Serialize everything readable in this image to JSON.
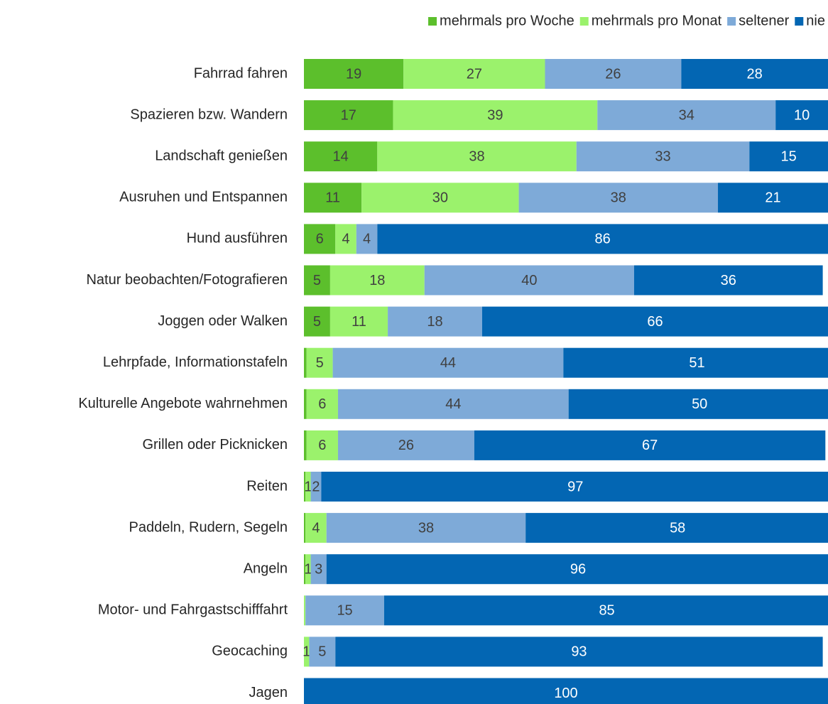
{
  "chart_data": {
    "type": "stacked-bar-horizontal",
    "categories": [
      "Fahrrad fahren",
      "Spazieren bzw. Wandern",
      "Landschaft genießen",
      "Ausruhen und Entspannen",
      "Hund ausführen",
      "Natur beobachten/Fotografieren",
      "Joggen oder Walken",
      "Lehrpfade, Informationstafeln",
      "Kulturelle Angebote wahrnehmen",
      "Grillen oder Picknicken",
      "Reiten",
      "Paddeln, Rudern, Segeln",
      "Angeln",
      "Motor- und Fahrgastschifffahrt",
      "Geocaching",
      "Jagen"
    ],
    "xlim": [
      0,
      100
    ],
    "legend": "top-right",
    "series": [
      {
        "name": "mehrmals pro Woche",
        "color": "#5cbf2c",
        "values": [
          19,
          17,
          14,
          11,
          6,
          5,
          5,
          0.5,
          0.5,
          0.5,
          0.3,
          0.3,
          0.3,
          0,
          0,
          0
        ],
        "value_labels": [
          "19",
          "17",
          "14",
          "11",
          "6",
          "5",
          "5",
          null,
          null,
          null,
          null,
          null,
          null,
          null,
          null,
          null
        ]
      },
      {
        "name": "mehrmals pro Monat",
        "color": "#9bf26c",
        "values": [
          27,
          39,
          38,
          30,
          4,
          18,
          11,
          5,
          6,
          6,
          1,
          4,
          1,
          0.3,
          1,
          0
        ],
        "value_labels": [
          "27",
          "39",
          "38",
          "30",
          "4",
          "18",
          "11",
          "5",
          "6",
          "6",
          "1",
          "4",
          "1",
          null,
          "1",
          null
        ]
      },
      {
        "name": "seltener",
        "color": "#7eaad8",
        "values": [
          26,
          34,
          33,
          38,
          4,
          40,
          18,
          44,
          44,
          26,
          2,
          38,
          3,
          15,
          5,
          0
        ],
        "value_labels": [
          "26",
          "34",
          "33",
          "38",
          "4",
          "40",
          "18",
          "44",
          "44",
          "26",
          "2",
          "38",
          "3",
          "15",
          "5",
          null
        ]
      },
      {
        "name": "nie",
        "color": "#0366b3",
        "values": [
          28,
          10,
          15,
          21,
          86,
          36,
          66,
          51,
          50,
          67,
          97,
          58,
          96,
          85,
          93,
          100
        ],
        "value_labels": [
          "28",
          "10",
          "15",
          "21",
          "86",
          "36",
          "66",
          "51",
          "50",
          "67",
          "97",
          "58",
          "96",
          "85",
          "93",
          "100"
        ]
      }
    ]
  }
}
